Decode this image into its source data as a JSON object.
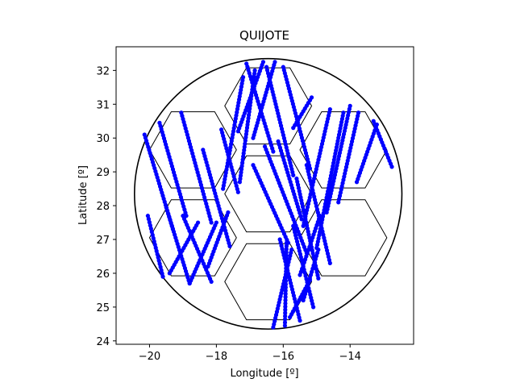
{
  "chart_data": {
    "type": "scatter",
    "title": "QUIJOTE",
    "xlabel": "Longitude [º]",
    "ylabel": "Latitude [º]",
    "xlim": [
      -21.0,
      -12.1
    ],
    "ylim": [
      23.9,
      32.7
    ],
    "xticks": [
      -20,
      -18,
      -16,
      -14
    ],
    "xtick_labels": [
      "−20",
      "−18",
      "−16",
      "−14"
    ],
    "yticks": [
      24,
      25,
      26,
      27,
      28,
      29,
      30,
      31,
      32
    ],
    "ytick_labels": [
      "24",
      "25",
      "26",
      "27",
      "28",
      "29",
      "30",
      "31",
      "32"
    ],
    "grid": false,
    "legend": "none",
    "colors": {
      "track": "#0000ff",
      "outline": "#000000",
      "hexagons": "#000000"
    },
    "circle": {
      "center": [
        -16.45,
        28.35
      ],
      "radius": 4.0
    },
    "hexagons": [
      {
        "center": [
          -16.45,
          30.95
        ],
        "radius": 1.3
      },
      {
        "center": [
          -18.7,
          29.65
        ],
        "radius": 1.3
      },
      {
        "center": [
          -14.2,
          29.65
        ],
        "radius": 1.3
      },
      {
        "center": [
          -16.45,
          28.35
        ],
        "radius": 1.3
      },
      {
        "center": [
          -18.7,
          27.05
        ],
        "radius": 1.3
      },
      {
        "center": [
          -14.2,
          27.05
        ],
        "radius": 1.3
      },
      {
        "center": [
          -16.45,
          25.75
        ],
        "radius": 1.3
      }
    ],
    "series": [
      {
        "tracks": [
          [
            [
              -20.15,
              30.1
            ],
            [
              -19.3,
              27.3
            ]
          ],
          [
            [
              -19.7,
              30.45
            ],
            [
              -18.9,
              27.7
            ]
          ],
          [
            [
              -19.05,
              30.75
            ],
            [
              -18.15,
              27.5
            ]
          ],
          [
            [
              -18.4,
              29.65
            ],
            [
              -17.6,
              26.8
            ]
          ],
          [
            [
              -17.85,
              30.25
            ],
            [
              -17.35,
              28.4
            ]
          ],
          [
            [
              -20.05,
              27.7
            ],
            [
              -19.6,
              25.9
            ]
          ],
          [
            [
              -19.5,
              27.95
            ],
            [
              -18.8,
              25.7
            ]
          ],
          [
            [
              -19.0,
              27.7
            ],
            [
              -18.15,
              25.75
            ]
          ],
          [
            [
              -19.4,
              26.0
            ],
            [
              -18.55,
              27.5
            ]
          ],
          [
            [
              -18.8,
              25.7
            ],
            [
              -18.0,
              27.5
            ]
          ],
          [
            [
              -18.25,
              26.2
            ],
            [
              -17.65,
              27.8
            ]
          ],
          [
            [
              -17.8,
              28.5
            ],
            [
              -17.2,
              31.8
            ]
          ],
          [
            [
              -17.3,
              28.7
            ],
            [
              -16.85,
              32.0
            ]
          ],
          [
            [
              -17.35,
              30.2
            ],
            [
              -16.6,
              32.25
            ]
          ],
          [
            [
              -16.9,
              30.0
            ],
            [
              -16.25,
              32.25
            ]
          ],
          [
            [
              -17.1,
              32.2
            ],
            [
              -16.3,
              29.6
            ]
          ],
          [
            [
              -16.5,
              32.1
            ],
            [
              -15.7,
              28.9
            ]
          ],
          [
            [
              -16.0,
              32.1
            ],
            [
              -15.2,
              29.1
            ]
          ],
          [
            [
              -15.7,
              30.3
            ],
            [
              -15.15,
              31.2
            ]
          ],
          [
            [
              -16.9,
              29.2
            ],
            [
              -15.85,
              26.9
            ]
          ],
          [
            [
              -16.55,
              29.75
            ],
            [
              -15.3,
              26.6
            ]
          ],
          [
            [
              -16.15,
              29.9
            ],
            [
              -15.45,
              27.6
            ]
          ],
          [
            [
              -15.4,
              27.4
            ],
            [
              -14.6,
              30.85
            ]
          ],
          [
            [
              -15.0,
              26.75
            ],
            [
              -14.2,
              30.75
            ]
          ],
          [
            [
              -14.7,
              27.8
            ],
            [
              -14.0,
              30.95
            ]
          ],
          [
            [
              -14.35,
              28.1
            ],
            [
              -13.75,
              30.75
            ]
          ],
          [
            [
              -13.8,
              28.7
            ],
            [
              -13.2,
              30.4
            ]
          ],
          [
            [
              -13.3,
              30.5
            ],
            [
              -12.75,
              29.15
            ]
          ],
          [
            [
              -15.3,
              29.2
            ],
            [
              -14.6,
              26.3
            ]
          ],
          [
            [
              -15.6,
              28.8
            ],
            [
              -14.95,
              25.85
            ]
          ],
          [
            [
              -14.9,
              27.7
            ],
            [
              -15.5,
              25.95
            ]
          ],
          [
            [
              -15.7,
              27.4
            ],
            [
              -15.1,
              25.0
            ]
          ],
          [
            [
              -16.1,
              27.0
            ],
            [
              -15.5,
              24.6
            ]
          ],
          [
            [
              -15.9,
              26.9
            ],
            [
              -15.95,
              24.45
            ]
          ],
          [
            [
              -16.3,
              24.4
            ],
            [
              -15.75,
              26.7
            ]
          ],
          [
            [
              -15.8,
              24.7
            ],
            [
              -15.2,
              25.8
            ]
          ],
          [
            [
              -15.4,
              25.2
            ],
            [
              -14.95,
              26.7
            ]
          ]
        ]
      }
    ]
  }
}
